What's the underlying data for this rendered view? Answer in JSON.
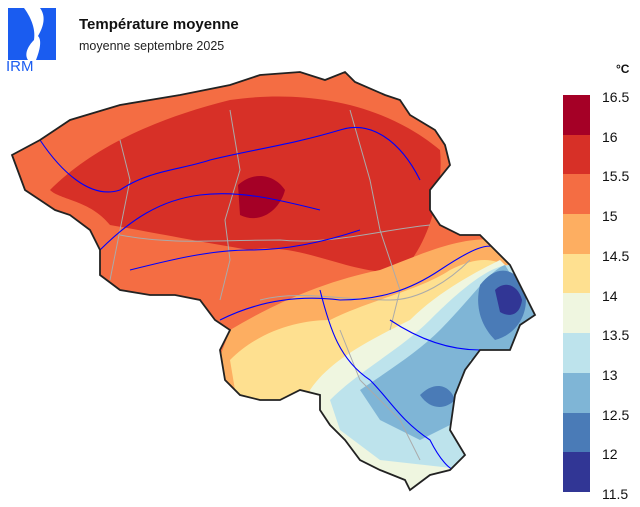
{
  "header": {
    "title": "Température moyenne",
    "subtitle": "moyenne septembre 2025",
    "logo_text": "IRM"
  },
  "legend": {
    "unit": "°C",
    "labels": [
      "16.5",
      "16",
      "15.5",
      "15",
      "14.5",
      "14",
      "13.5",
      "13",
      "12.5",
      "12",
      "11.5"
    ],
    "colors": [
      "#a50026",
      "#d73027",
      "#f46d43",
      "#fdae61",
      "#fee090",
      "#eff6e0",
      "#bde3ec",
      "#7fb5d6",
      "#4a7bb7",
      "#313695"
    ]
  },
  "map": {
    "outline_color": "#222222",
    "river_color": "#0000ff",
    "province_border_color": "#aaaaaa"
  }
}
